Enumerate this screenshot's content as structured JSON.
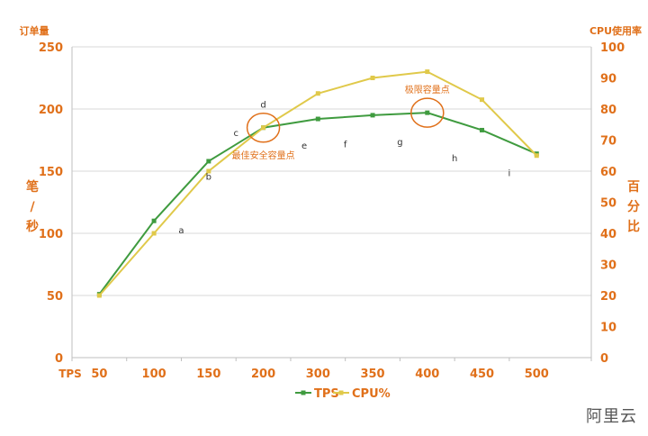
{
  "chart_data": {
    "type": "line",
    "x": [
      50,
      100,
      150,
      200,
      300,
      350,
      400,
      450,
      500
    ],
    "x_tick_labels": [
      "50",
      "100",
      "150",
      "200",
      "300",
      "350",
      "400",
      "450",
      "500"
    ],
    "x_axis_label": "TPS",
    "left_axis": {
      "title": "订单量",
      "unit_label": [
        "笔",
        "/",
        "秒"
      ],
      "range": [
        0,
        250
      ],
      "ticks": [
        "0",
        "50",
        "100",
        "150",
        "200",
        "250"
      ]
    },
    "right_axis": {
      "title": "CPU使用率",
      "unit_label": [
        "百",
        "分",
        "比"
      ],
      "range": [
        0,
        100
      ],
      "ticks": [
        "0",
        "10",
        "20",
        "30",
        "40",
        "50",
        "60",
        "70",
        "80",
        "90",
        "100"
      ]
    },
    "series": [
      {
        "name": "TPS",
        "axis": "left",
        "color": "#3f9b3f",
        "values": [
          51,
          110,
          158,
          185,
          192,
          195,
          197,
          183,
          164
        ]
      },
      {
        "name": "CPU%",
        "axis": "right",
        "color": "#e0c94a",
        "values": [
          20,
          40,
          60,
          74,
          85,
          90,
          92,
          83,
          65
        ]
      }
    ],
    "legend": {
      "position": "bottom-center",
      "items": [
        "TPS",
        "CPU%"
      ]
    },
    "grid": "horizontal",
    "phase_labels": [
      {
        "text": "a",
        "x": 125,
        "y": 103
      },
      {
        "text": "b",
        "x": 150,
        "y": 146
      },
      {
        "text": "c",
        "x": 175,
        "y": 181
      },
      {
        "text": "d",
        "x": 200,
        "y": 204
      },
      {
        "text": "e",
        "x": 275,
        "y": 171
      },
      {
        "text": "f",
        "x": 325,
        "y": 172
      },
      {
        "text": "g",
        "x": 375,
        "y": 174
      },
      {
        "text": "h",
        "x": 425,
        "y": 161
      },
      {
        "text": "i",
        "x": 475,
        "y": 149
      }
    ],
    "annotations": [
      {
        "text": "最佳安全容量点",
        "x": 200,
        "y": 185,
        "text_y": 163
      },
      {
        "text": "极限容量点",
        "x": 400,
        "y": 197,
        "text_y": 216
      }
    ],
    "colors": {
      "axis_text": "#e0701a",
      "grid": "#d9d9d9",
      "axis_line": "#bfbfbf",
      "highlight": "#e0701a"
    }
  },
  "watermark": "阿里云"
}
